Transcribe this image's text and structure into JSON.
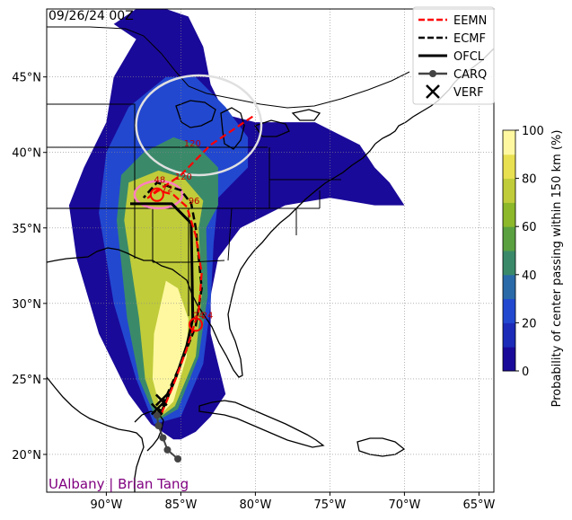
{
  "header": {
    "init_time": "09/26/24 00Z"
  },
  "credit": "UAlbany | Brian Tang",
  "chart_data": {
    "type": "map",
    "title": "",
    "xlim": [
      -94,
      -64
    ],
    "ylim": [
      17.5,
      49.5
    ],
    "x_ticks": [
      {
        "value": -90,
        "label": "90°W"
      },
      {
        "value": -85,
        "label": "85°W"
      },
      {
        "value": -80,
        "label": "80°W"
      },
      {
        "value": -75,
        "label": "75°W"
      },
      {
        "value": -70,
        "label": "70°W"
      },
      {
        "value": -65,
        "label": "65°W"
      }
    ],
    "y_ticks": [
      {
        "value": 20,
        "label": "20°N"
      },
      {
        "value": 25,
        "label": "25°N"
      },
      {
        "value": 30,
        "label": "30°N"
      },
      {
        "value": 35,
        "label": "35°N"
      },
      {
        "value": 40,
        "label": "40°N"
      },
      {
        "value": 45,
        "label": "45°N"
      }
    ],
    "grid": true,
    "legend_position": "top-right",
    "legend": [
      {
        "name": "EEMN",
        "style": "dashed",
        "color": "#ff0000",
        "marker": "none"
      },
      {
        "name": "ECMF",
        "style": "dashed",
        "color": "#000000",
        "marker": "none"
      },
      {
        "name": "OFCL",
        "style": "solid",
        "color": "#000000",
        "marker": "none"
      },
      {
        "name": "CARQ",
        "style": "solid",
        "color": "#444444",
        "marker": "circle"
      },
      {
        "name": "VERF",
        "style": "none",
        "color": "#000000",
        "marker": "x"
      }
    ],
    "colorbar": {
      "label": "Probability of center passing within 150 km (%)",
      "range": [
        0,
        100
      ],
      "ticks": [
        {
          "value": 0,
          "label": "0"
        },
        {
          "value": 20,
          "label": "20"
        },
        {
          "value": 40,
          "label": "40"
        },
        {
          "value": 60,
          "label": "60"
        },
        {
          "value": 80,
          "label": "80"
        },
        {
          "value": 100,
          "label": "100"
        }
      ],
      "colors": [
        "#1a0a99",
        "#1c2bb8",
        "#2248d0",
        "#2a6aa8",
        "#3a8a6a",
        "#5aa040",
        "#8cb82a",
        "#c0cc3a",
        "#e8e050",
        "#fff8a0"
      ]
    },
    "series": [
      {
        "name": "OFCL",
        "color": "#000000",
        "lon": [
          -86.4,
          -86.0,
          -85.3,
          -84.6,
          -84.2,
          -84.3,
          -85.6,
          -87.0,
          -88.4
        ],
        "lat": [
          22.6,
          23.5,
          25.2,
          27.2,
          29.0,
          35.3,
          36.6,
          36.6,
          36.6
        ],
        "hour_labels": [
          {
            "lon": -84.2,
            "lat": 29.0,
            "text": "24"
          },
          {
            "lon": -84.5,
            "lat": 36.6,
            "text": "96"
          }
        ]
      },
      {
        "name": "ECMF",
        "color": "#000000",
        "lon": [
          -86.6,
          -86.0,
          -85.0,
          -84.0,
          -83.6,
          -84.0,
          -84.3,
          -85.0,
          -86.6,
          -87.5
        ],
        "lat": [
          22.6,
          23.8,
          26.0,
          28.5,
          31.0,
          35.0,
          36.6,
          37.5,
          38.0,
          37.0
        ],
        "hour_labels": [
          {
            "lon": -85.4,
            "lat": 38.2,
            "text": "120"
          },
          {
            "lon": -83.6,
            "lat": 29.0,
            "text": "24"
          }
        ]
      },
      {
        "name": "EEMN",
        "color": "#ff0000",
        "lon": [
          -86.3,
          -85.5,
          -84.6,
          -83.8,
          -83.6,
          -84.0,
          -84.6,
          -85.5,
          -86.6,
          -87.2,
          -85.0,
          -83.0,
          -80.0
        ],
        "lat": [
          22.7,
          24.6,
          27.0,
          29.5,
          32.0,
          34.5,
          36.4,
          37.2,
          37.5,
          37.0,
          38.5,
          40.5,
          42.5
        ],
        "hour_labels": [
          {
            "lon": -86.3,
            "lat": 37.4,
            "text": "72"
          },
          {
            "lon": -84.8,
            "lat": 40.4,
            "text": "120"
          },
          {
            "lon": -86.8,
            "lat": 38.0,
            "text": "48"
          }
        ]
      },
      {
        "name": "CARQ",
        "color": "#444444",
        "lon": [
          -85.2,
          -85.9,
          -86.2,
          -86.5,
          -86.6
        ],
        "lat": [
          19.7,
          20.3,
          21.1,
          21.9,
          22.6
        ]
      },
      {
        "name": "VERF",
        "color": "#000000",
        "lon": [
          -86.6,
          -86.3
        ],
        "lat": [
          23.0,
          23.6
        ]
      }
    ],
    "probability_contours": [
      {
        "value": 5,
        "color": "#1a0a99",
        "lon": [
          -87.0,
          -88.5,
          -90.5,
          -92.0,
          -92.5,
          -91.5,
          -90.0,
          -89.5,
          -88.0,
          -89.5,
          -88.0,
          -86.0,
          -84.5,
          -83.5,
          -83.0,
          -82.5,
          -82.0,
          -80.0,
          -76.0,
          -73.0,
          -72.0,
          -71.0,
          -70.0,
          -72.0,
          -75.0,
          -78.0,
          -81.0,
          -82.5,
          -83.0,
          -83.0,
          -82.5,
          -82.0,
          -83.0,
          -84.0,
          -85.0,
          -85.5,
          -87.0
        ],
        "lat": [
          22.0,
          24.0,
          28.0,
          33.0,
          36.5,
          39.0,
          42.0,
          45.0,
          47.5,
          48.5,
          49.5,
          49.5,
          49.0,
          47.0,
          44.5,
          43.5,
          42.5,
          42.0,
          42.0,
          40.5,
          39.0,
          38.0,
          36.5,
          36.5,
          37.0,
          36.5,
          35.0,
          33.0,
          30.5,
          28.0,
          26.0,
          24.0,
          22.5,
          21.5,
          21.0,
          21.0,
          22.0
        ]
      },
      {
        "value": 20,
        "color": "#2248d0",
        "lon": [
          -86.8,
          -88.0,
          -89.5,
          -90.5,
          -90.0,
          -88.5,
          -86.0,
          -84.0,
          -82.0,
          -80.5,
          -80.5,
          -82.5,
          -82.8,
          -83.0,
          -83.5,
          -85.0,
          -86.8
        ],
        "lat": [
          22.0,
          25.0,
          30.0,
          36.0,
          40.0,
          43.0,
          45.0,
          45.0,
          43.0,
          41.0,
          39.0,
          37.0,
          34.0,
          30.0,
          26.0,
          22.5,
          22.0
        ]
      },
      {
        "value": 40,
        "color": "#3a8a6a",
        "lon": [
          -86.6,
          -87.8,
          -88.6,
          -89.3,
          -89.0,
          -87.5,
          -85.5,
          -84.0,
          -82.5,
          -82.5,
          -83.3,
          -83.2,
          -83.8,
          -85.2,
          -86.6
        ],
        "lat": [
          22.2,
          25.0,
          29.0,
          35.5,
          38.5,
          40.0,
          41.0,
          40.5,
          39.0,
          36.5,
          35.0,
          30.5,
          26.5,
          23.0,
          22.2
        ]
      },
      {
        "value": 70,
        "color": "#c0cc3a",
        "lon": [
          -86.5,
          -87.4,
          -87.8,
          -88.8,
          -88.5,
          -86.5,
          -84.8,
          -83.5,
          -83.8,
          -83.6,
          -84.0,
          -85.4,
          -86.5
        ],
        "lat": [
          22.4,
          25.0,
          29.0,
          35.5,
          38.0,
          38.8,
          38.3,
          36.8,
          35.0,
          30.5,
          26.5,
          23.2,
          22.4
        ]
      },
      {
        "value": 90,
        "color": "#fff8a0",
        "lon": [
          -86.3,
          -86.9,
          -86.8,
          -86.0,
          -85.2,
          -84.5,
          -84.6,
          -85.5,
          -86.3
        ],
        "lat": [
          22.7,
          25.0,
          28.0,
          31.5,
          31.0,
          29.0,
          26.5,
          23.5,
          22.7
        ]
      }
    ],
    "uncertainty_rings": [
      {
        "color": "#ff7fbf",
        "center_lon": -86.5,
        "center_lat": 37.2,
        "rx_deg": 1.6,
        "ry_deg": 0.9
      },
      {
        "color": "#e0e0e0",
        "center_lon": -83.8,
        "center_lat": 41.8,
        "rx_deg": 4.2,
        "ry_deg": 3.3
      }
    ],
    "position_markers": [
      {
        "lon": -84.0,
        "lat": 28.6,
        "color": "#ff0000"
      },
      {
        "lon": -86.6,
        "lat": 37.2,
        "color": "#ff0000"
      }
    ]
  }
}
